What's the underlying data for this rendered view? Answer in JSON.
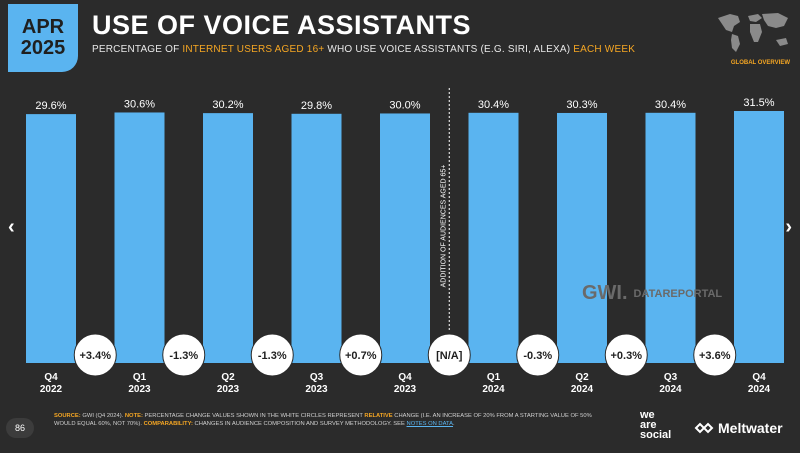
{
  "badge": {
    "month": "APR",
    "year": "2025"
  },
  "header": {
    "title": "USE OF VOICE ASSISTANTS",
    "subtitle_pre": "PERCENTAGE OF ",
    "subtitle_hl1": "INTERNET USERS AGED 16+",
    "subtitle_mid": " WHO USE VOICE ASSISTANTS (E.G. SIRI, ALEXA) ",
    "subtitle_hl2": "EACH WEEK"
  },
  "region_label": "GLOBAL OVERVIEW",
  "nav": {
    "prev": "‹",
    "next": "›"
  },
  "chart_data": {
    "type": "bar",
    "categories": [
      [
        "Q4",
        "2022"
      ],
      [
        "Q1",
        "2023"
      ],
      [
        "Q2",
        "2023"
      ],
      [
        "Q3",
        "2023"
      ],
      [
        "Q4",
        "2023"
      ],
      [
        "Q1",
        "2024"
      ],
      [
        "Q2",
        "2024"
      ],
      [
        "Q3",
        "2024"
      ],
      [
        "Q4",
        "2024"
      ]
    ],
    "values": [
      29.6,
      30.6,
      30.2,
      29.8,
      30.0,
      30.4,
      30.3,
      30.4,
      31.5
    ],
    "value_labels": [
      "29.6%",
      "30.6%",
      "30.2%",
      "29.8%",
      "30.0%",
      "30.4%",
      "30.3%",
      "30.4%",
      "31.5%"
    ],
    "change_labels": [
      "+3.4%",
      "-1.3%",
      "-1.3%",
      "+0.7%",
      "[N/A]",
      "-0.3%",
      "+0.3%",
      "+3.6%"
    ],
    "annotation": "ADDITION OF AUDIENCES AGED 65+",
    "bar_color": "#5ab4f0"
  },
  "watermark": {
    "gwi": "GWI.",
    "datareportal": "DATAREPORTAL"
  },
  "footer": {
    "source_label": "SOURCE:",
    "source_text": " GWI (Q4 2024). ",
    "note_label": "NOTE:",
    "note_text_1": " PERCENTAGE CHANGE VALUES SHOWN IN THE WHITE CIRCLES REPRESENT ",
    "note_hl": "RELATIVE",
    "note_text_2": " CHANGE (I.E. AN INCREASE OF 20% FROM A STARTING VALUE OF 50% WOULD EQUAL 60%, NOT 70%). ",
    "comp_label": "COMPARABILITY:",
    "comp_text": " CHANGES IN AUDIENCE COMPOSITION AND SURVEY METHODOLOGY. SEE ",
    "notes_link": "NOTES ON DATA",
    "end": "."
  },
  "page_number": "86",
  "logos": {
    "was_1": "we",
    "was_2": "are",
    "was_3": "social",
    "meltwater": "Meltwater"
  }
}
